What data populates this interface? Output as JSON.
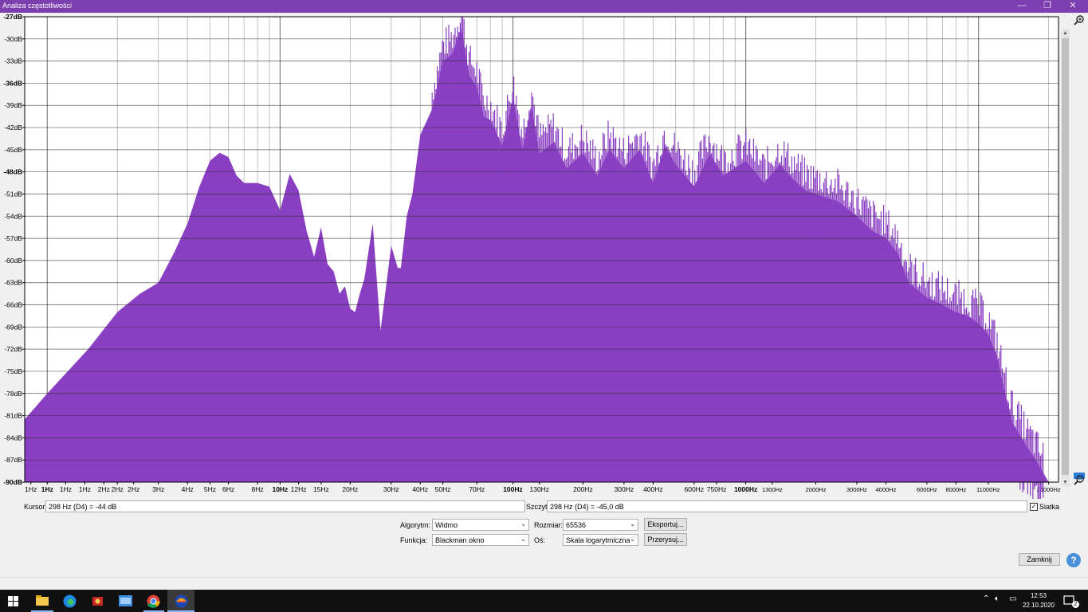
{
  "window": {
    "title": "Analiza częstotliwości",
    "minimize": "—",
    "restore": "❐",
    "close": "✕"
  },
  "chart_data": {
    "type": "area",
    "title": "",
    "xlabel": "",
    "ylabel": "",
    "x_scale": "log",
    "xlim": [
      0.8,
      22050
    ],
    "ylim": [
      -90,
      -27
    ],
    "grid": true,
    "fill_color": "#8a3fc2",
    "y_tick_labels": [
      "-27dB",
      "-30dB",
      "-33dB",
      "-36dB",
      "-39dB",
      "-42dB",
      "-45dB",
      "-48dB",
      "-51dB",
      "-54dB",
      "-57dB",
      "-60dB",
      "-63dB",
      "-66dB",
      "-69dB",
      "-72dB",
      "-75dB",
      "-78dB",
      "-81dB",
      "-84dB",
      "-87dB",
      "-90dB"
    ],
    "y_tick_values": [
      -27,
      -30,
      -33,
      -36,
      -39,
      -42,
      -45,
      -48,
      -51,
      -54,
      -57,
      -60,
      -63,
      -66,
      -69,
      -72,
      -75,
      -78,
      -81,
      -84,
      -87,
      -90
    ],
    "x_tick_labels": [
      "1Hz",
      "1Hz",
      "1Hz",
      "1Hz",
      "2Hz",
      "2Hz",
      "2Hz",
      "3Hz",
      "4Hz",
      "5Hz",
      "6Hz",
      "8Hz",
      "10Hz",
      "12Hz",
      "15Hz",
      "20Hz",
      "30Hz",
      "40Hz",
      "50Hz",
      "70Hz",
      "100Hz",
      "130Hz",
      "200Hz",
      "300Hz",
      "400Hz",
      "600Hz",
      "750Hz",
      "1000Hz",
      "1300Hz",
      "2000Hz",
      "3000Hz",
      "4000Hz",
      "6000Hz",
      "8000Hz",
      "11000Hz",
      "20000Hz"
    ],
    "x_tick_values": [
      0.85,
      1.0,
      1.2,
      1.45,
      1.75,
      2.0,
      2.35,
      3,
      4,
      5,
      6,
      8,
      10,
      12,
      15,
      20,
      30,
      40,
      50,
      70,
      100,
      130,
      200,
      300,
      400,
      600,
      750,
      1000,
      1300,
      2000,
      3000,
      4000,
      6000,
      8000,
      11000,
      20000
    ],
    "x_tick_bold": [
      "1Hz",
      "10Hz",
      "100Hz",
      "1000Hz"
    ],
    "x": [
      0.8,
      1,
      1.5,
      2,
      2.5,
      3,
      3.5,
      4,
      4.5,
      5,
      5.5,
      6,
      6.5,
      7,
      8,
      9,
      10,
      11,
      12,
      13,
      14,
      15,
      16,
      17,
      18,
      19,
      20,
      21,
      22,
      23,
      25,
      27,
      30,
      32,
      33,
      35,
      37,
      40,
      45,
      50,
      55,
      60,
      65,
      70,
      75,
      80,
      90,
      100,
      110,
      120,
      130,
      150,
      170,
      200,
      230,
      260,
      300,
      350,
      400,
      450,
      500,
      600,
      700,
      800,
      900,
      1000,
      1200,
      1400,
      1600,
      1800,
      2000,
      2500,
      3000,
      3500,
      4000,
      4500,
      5000,
      6000,
      7000,
      8000,
      9000,
      10000,
      11000,
      12000,
      13000,
      14000,
      16000,
      18000,
      20000
    ],
    "y": [
      -81.5,
      -78,
      -72,
      -67,
      -64.5,
      -63,
      -59,
      -55,
      -50,
      -46.5,
      -45.4,
      -46,
      -48.5,
      -49.5,
      -49.5,
      -50,
      -53.2,
      -48.3,
      -50.5,
      -56,
      -59.5,
      -55.5,
      -60.5,
      -61.5,
      -64.5,
      -63.5,
      -66.5,
      -67,
      -64.5,
      -62.5,
      -55,
      -69.5,
      -58,
      -61,
      -61,
      -54,
      -51,
      -43,
      -39.5,
      -33,
      -32,
      -28.5,
      -35,
      -36.5,
      -40.5,
      -41,
      -44.5,
      -38,
      -45,
      -39,
      -45.5,
      -44,
      -47.5,
      -45.5,
      -48.5,
      -45,
      -47.5,
      -45,
      -49.5,
      -44.5,
      -47,
      -50,
      -45.5,
      -48.5,
      -47.5,
      -46.5,
      -49.5,
      -47,
      -49,
      -50.5,
      -51,
      -52,
      -54,
      -56,
      -57,
      -59,
      -63,
      -65,
      -66,
      -67,
      -67.5,
      -68.5,
      -70,
      -73,
      -78,
      -82,
      -85,
      -87.5,
      -90
    ]
  },
  "readouts": {
    "cursor_label": "Kursor:",
    "cursor_value": "298 Hz (D4) = -44 dB",
    "peak_label": "Szczyt:",
    "peak_value": "298 Hz (D4) = -45,0 dB",
    "grid_label": "Siatka",
    "grid_checked": true
  },
  "controls": {
    "algorithm_label": "Algorytm:",
    "algorithm_value": "Widmo",
    "function_label": "Funkcja:",
    "function_value": "Blackman okno",
    "size_label": "Rozmiar:",
    "size_value": "65536",
    "axis_label": "Oś:",
    "axis_value": "Skala logarytmiczna",
    "export_label": "Eksportuj...",
    "redraw_label": "Przerysuj...",
    "close_label": "Zamknij",
    "help_label": "?"
  },
  "taskbar": {
    "start_icon": "windows-start-icon",
    "apps": [
      "file-explorer-icon",
      "edge-icon",
      "app-red-icon",
      "mail-icon",
      "chrome-icon",
      "audacity-icon"
    ],
    "time": "12:53",
    "date": "22.10.2020",
    "notification_count": "2"
  },
  "colors": {
    "accent": "#7b3fb0",
    "spectrum": "#8a3fc2",
    "taskbar": "#101010"
  }
}
